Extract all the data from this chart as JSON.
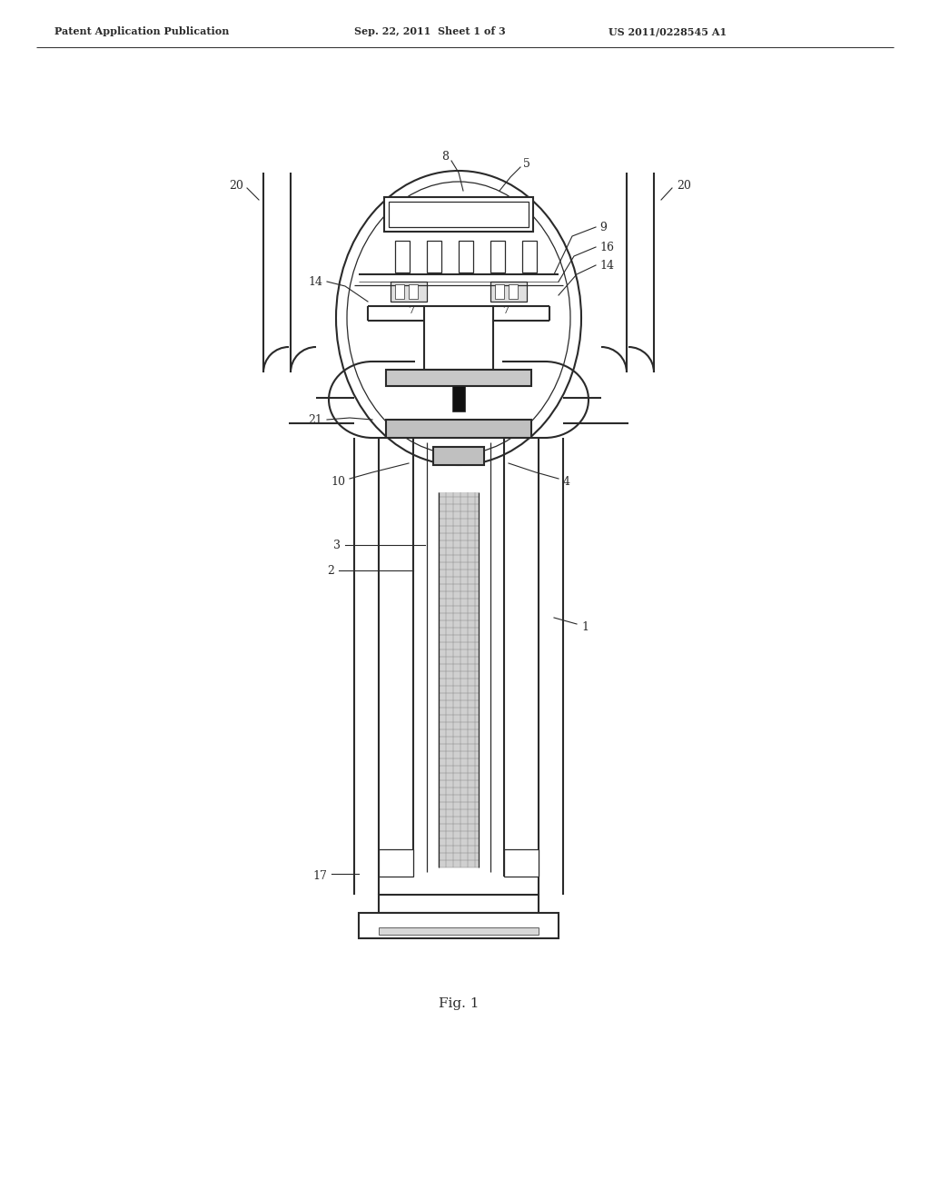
{
  "background_color": "#ffffff",
  "header_left": "Patent Application Publication",
  "header_mid": "Sep. 22, 2011  Sheet 1 of 3",
  "header_right": "US 2011/0228545 A1",
  "footer_label": "Fig. 1",
  "line_color": "#2a2a2a",
  "lw_main": 1.5,
  "lw_thin": 0.9,
  "lw_hair": 0.5
}
